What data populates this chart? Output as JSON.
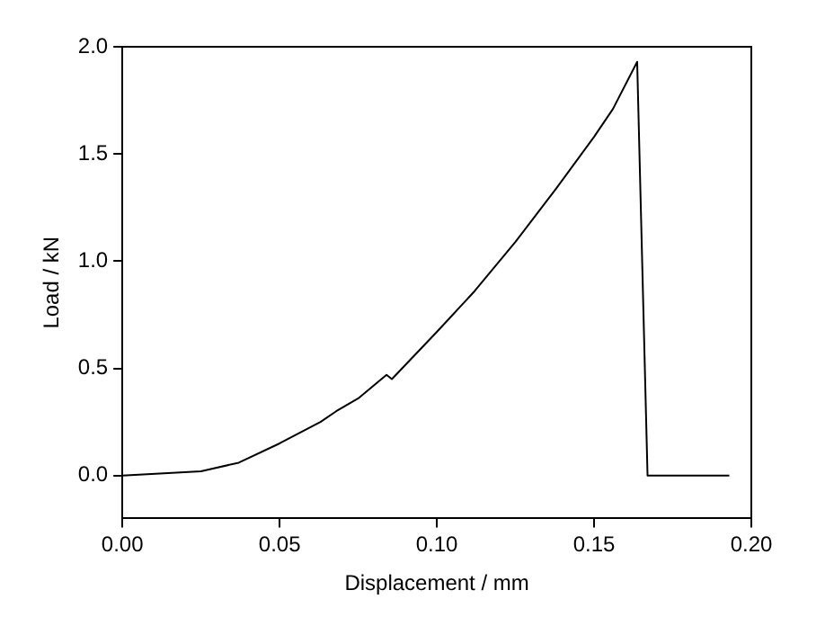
{
  "chart_data": {
    "type": "line",
    "xlabel": "Displacement / mm",
    "ylabel": "Load / kN",
    "x": [
      0,
      0.025,
      0.037,
      0.05,
      0.063,
      0.068,
      0.075,
      0.084,
      0.0857,
      0.1,
      0.112,
      0.125,
      0.138,
      0.15,
      0.156,
      0.1637,
      0.167,
      0.193
    ],
    "series": [
      {
        "color": "#000000",
        "values": [
          0,
          0.02,
          0.06,
          0.15,
          0.25,
          0.3,
          0.36,
          0.47,
          0.45,
          0.67,
          0.86,
          1.09,
          1.34,
          1.58,
          1.71,
          1.93,
          0,
          0
        ]
      }
    ],
    "xlim": [
      0,
      0.2
    ],
    "xticks": [
      {
        "value": 0,
        "label": "0.00"
      },
      {
        "value": 0.05,
        "label": "0.05"
      },
      {
        "value": 0.1,
        "label": "0.10"
      },
      {
        "value": 0.15,
        "label": "0.15"
      },
      {
        "value": 0.2,
        "label": "0.20"
      }
    ],
    "ylim": [
      -0.2,
      2.0
    ],
    "yticks": [
      {
        "value": 0,
        "label": "0.0"
      },
      {
        "value": 0.5,
        "label": "0.5"
      },
      {
        "value": 1,
        "label": "1.0"
      },
      {
        "value": 1.5,
        "label": "1.5"
      },
      {
        "value": 2,
        "label": "2.0"
      }
    ],
    "grid": false,
    "legend": false,
    "marker": "none",
    "line_style": "solid"
  }
}
